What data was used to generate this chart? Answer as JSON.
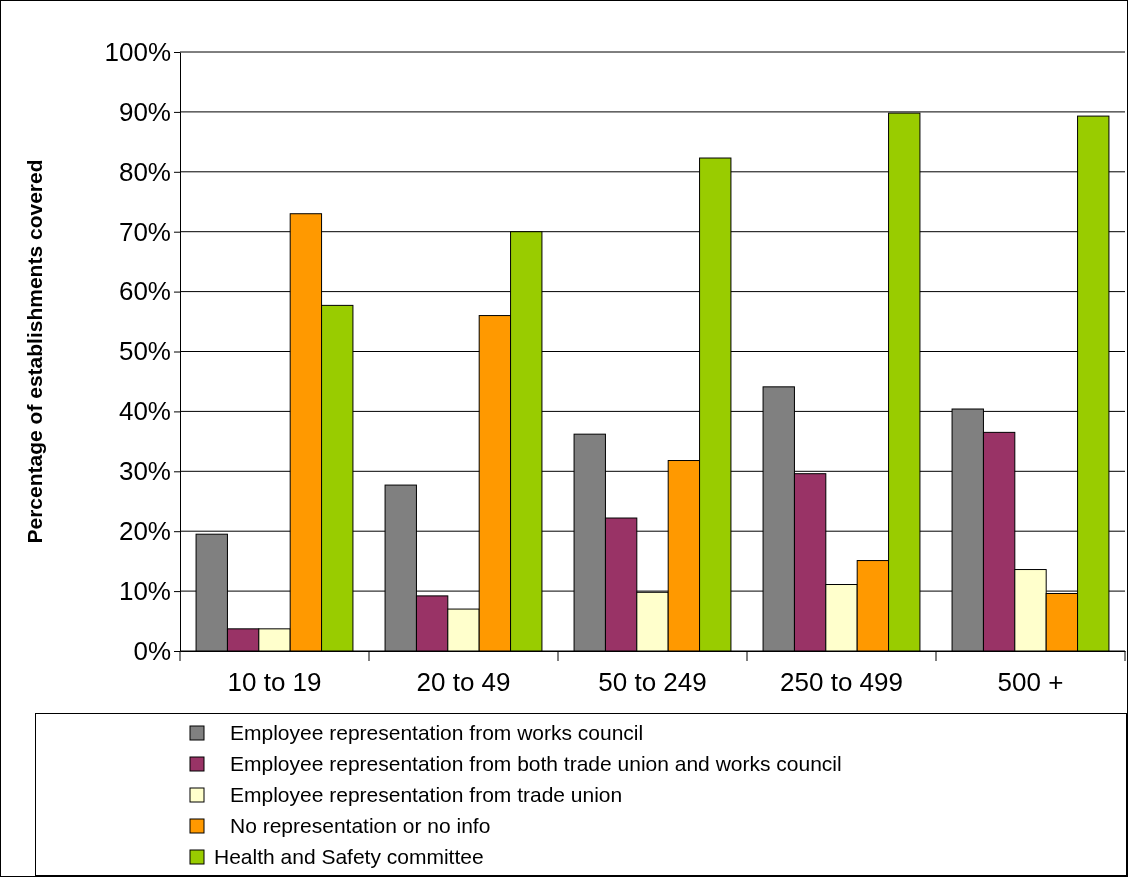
{
  "chart_data": {
    "type": "bar",
    "ylabel": "Percentage of establishments covered",
    "categories": [
      "10 to 19",
      "20 to 49",
      "50 to 249",
      "250 to 499",
      "500 +"
    ],
    "series": [
      {
        "name": "Employee representation from works council",
        "color": "#808080",
        "values": [
          19.5,
          27.7,
          36.2,
          44.1,
          40.4
        ]
      },
      {
        "name": "Employee representation from both trade union and works council",
        "color": "#993366",
        "values": [
          3.7,
          9.2,
          22.2,
          29.6,
          36.5
        ]
      },
      {
        "name": "Employee representation from trade union",
        "color": "#ffffcc",
        "values": [
          3.7,
          7,
          9.8,
          11.1,
          13.6
        ]
      },
      {
        "name": "No representation or no info",
        "color": "#ff9900",
        "values": [
          73,
          56,
          31.8,
          15.1,
          9.6
        ]
      },
      {
        "name": "Health and Safety committee",
        "color": "#99cc00",
        "values": [
          57.7,
          70,
          82.3,
          89.8,
          89.3
        ]
      }
    ],
    "ylim": [
      0,
      100
    ],
    "yticks": [
      {
        "value": 0,
        "label": "0%"
      },
      {
        "value": 10,
        "label": "10%"
      },
      {
        "value": 20,
        "label": "20%"
      },
      {
        "value": 30,
        "label": "30%"
      },
      {
        "value": 40,
        "label": "40%"
      },
      {
        "value": 50,
        "label": "50%"
      },
      {
        "value": 60,
        "label": "60%"
      },
      {
        "value": 70,
        "label": "70%"
      },
      {
        "value": 80,
        "label": "80%"
      },
      {
        "value": 90,
        "label": "90%"
      },
      {
        "value": 100,
        "label": "100%"
      }
    ],
    "grid": "y",
    "legend": "bottom"
  }
}
